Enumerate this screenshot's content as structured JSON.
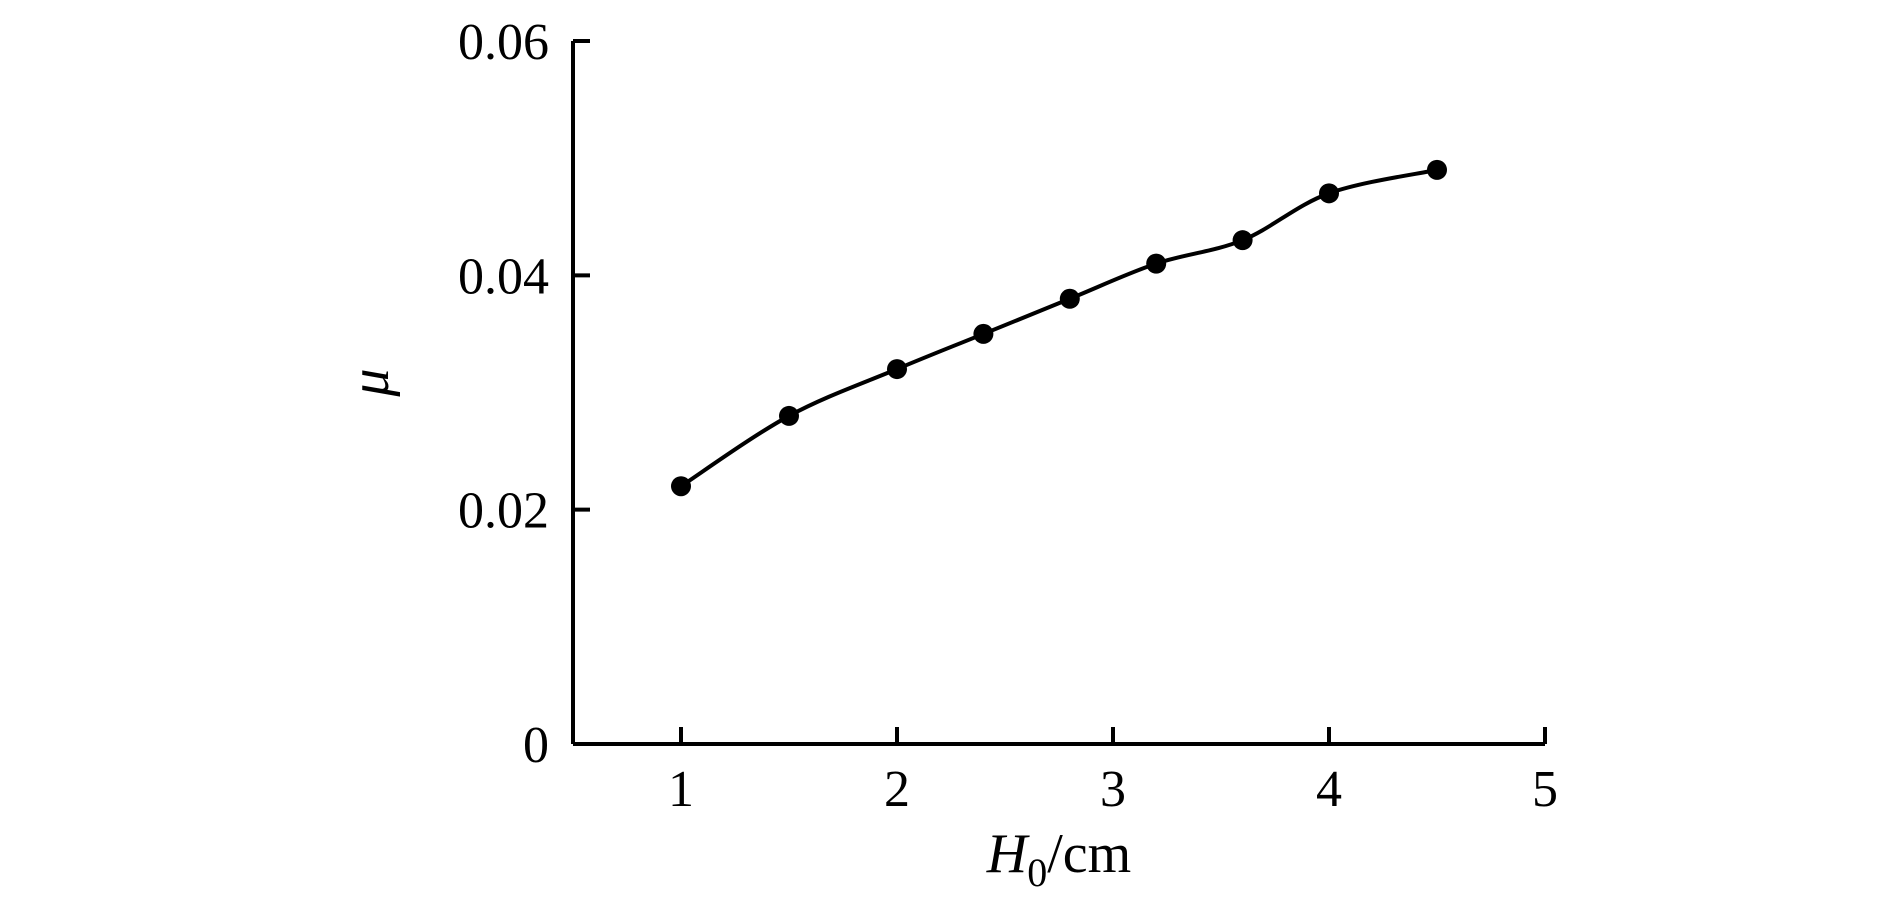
{
  "chart_data": {
    "type": "line",
    "title": "",
    "xlabel": {
      "symbol": "H",
      "subscript": "0",
      "unit": "/cm"
    },
    "ylabel": "μ",
    "xlim": [
      0.5,
      5
    ],
    "ylim": [
      0,
      0.06
    ],
    "x_ticks": [
      1,
      2,
      3,
      4,
      5
    ],
    "x_tick_labels": [
      "1",
      "2",
      "3",
      "4",
      "5"
    ],
    "y_ticks": [
      0,
      0.02,
      0.04,
      0.06
    ],
    "y_tick_labels": [
      "0",
      "0.02",
      "0.04",
      "0.06"
    ],
    "grid": false,
    "series": [
      {
        "x": [
          1.0,
          1.5,
          2.0,
          2.4,
          2.8,
          3.2,
          3.6,
          4.0,
          4.5
        ],
        "y": [
          0.022,
          0.028,
          0.032,
          0.035,
          0.038,
          0.041,
          0.043,
          0.047,
          0.049
        ],
        "marker": "filled-circle",
        "color": "#000000"
      }
    ]
  }
}
